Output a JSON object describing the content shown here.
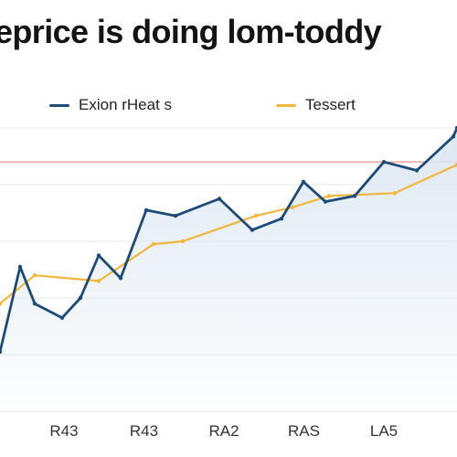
{
  "title": "eprice is doing lom-toddy",
  "colors": {
    "series1": "#1e4a7a",
    "series2": "#f2b63f",
    "reference": "#e0a08e",
    "grid": "#e7eaee",
    "area": "#dce7f2"
  },
  "chart_data": {
    "type": "line",
    "title": "eprice is doing lom-toddy",
    "xlabel": "",
    "ylabel": "",
    "x_tick_labels": [
      "R43",
      "R43",
      "RA2",
      "RAS",
      "LA5"
    ],
    "xlim": [
      0,
      100
    ],
    "ylim": [
      0,
      100
    ],
    "grid": true,
    "legend_position": "top",
    "series": [
      {
        "name": "Exion rHeat s",
        "x": [
          0,
          4.4,
          7.6,
          13.6,
          17.6,
          21.6,
          26.4,
          32.0,
          38.4,
          48.0,
          55.2,
          61.6,
          66.4,
          71.2,
          77.6,
          84.0,
          91.2,
          99.2,
          100
        ],
        "y": [
          21,
          51,
          38,
          33,
          40,
          55,
          47,
          71,
          69,
          75,
          64,
          68,
          81,
          74,
          76,
          88,
          85,
          97,
          100
        ]
      },
      {
        "name": "Tessert",
        "x": [
          0,
          7.6,
          21.6,
          33.6,
          40.0,
          56.0,
          64.0,
          72.0,
          86.4,
          100
        ],
        "y": [
          38,
          48,
          46,
          59,
          60,
          69,
          72,
          76,
          77,
          87
        ]
      }
    ],
    "annotations": [
      {
        "type": "reference_line",
        "y": 88
      }
    ]
  }
}
